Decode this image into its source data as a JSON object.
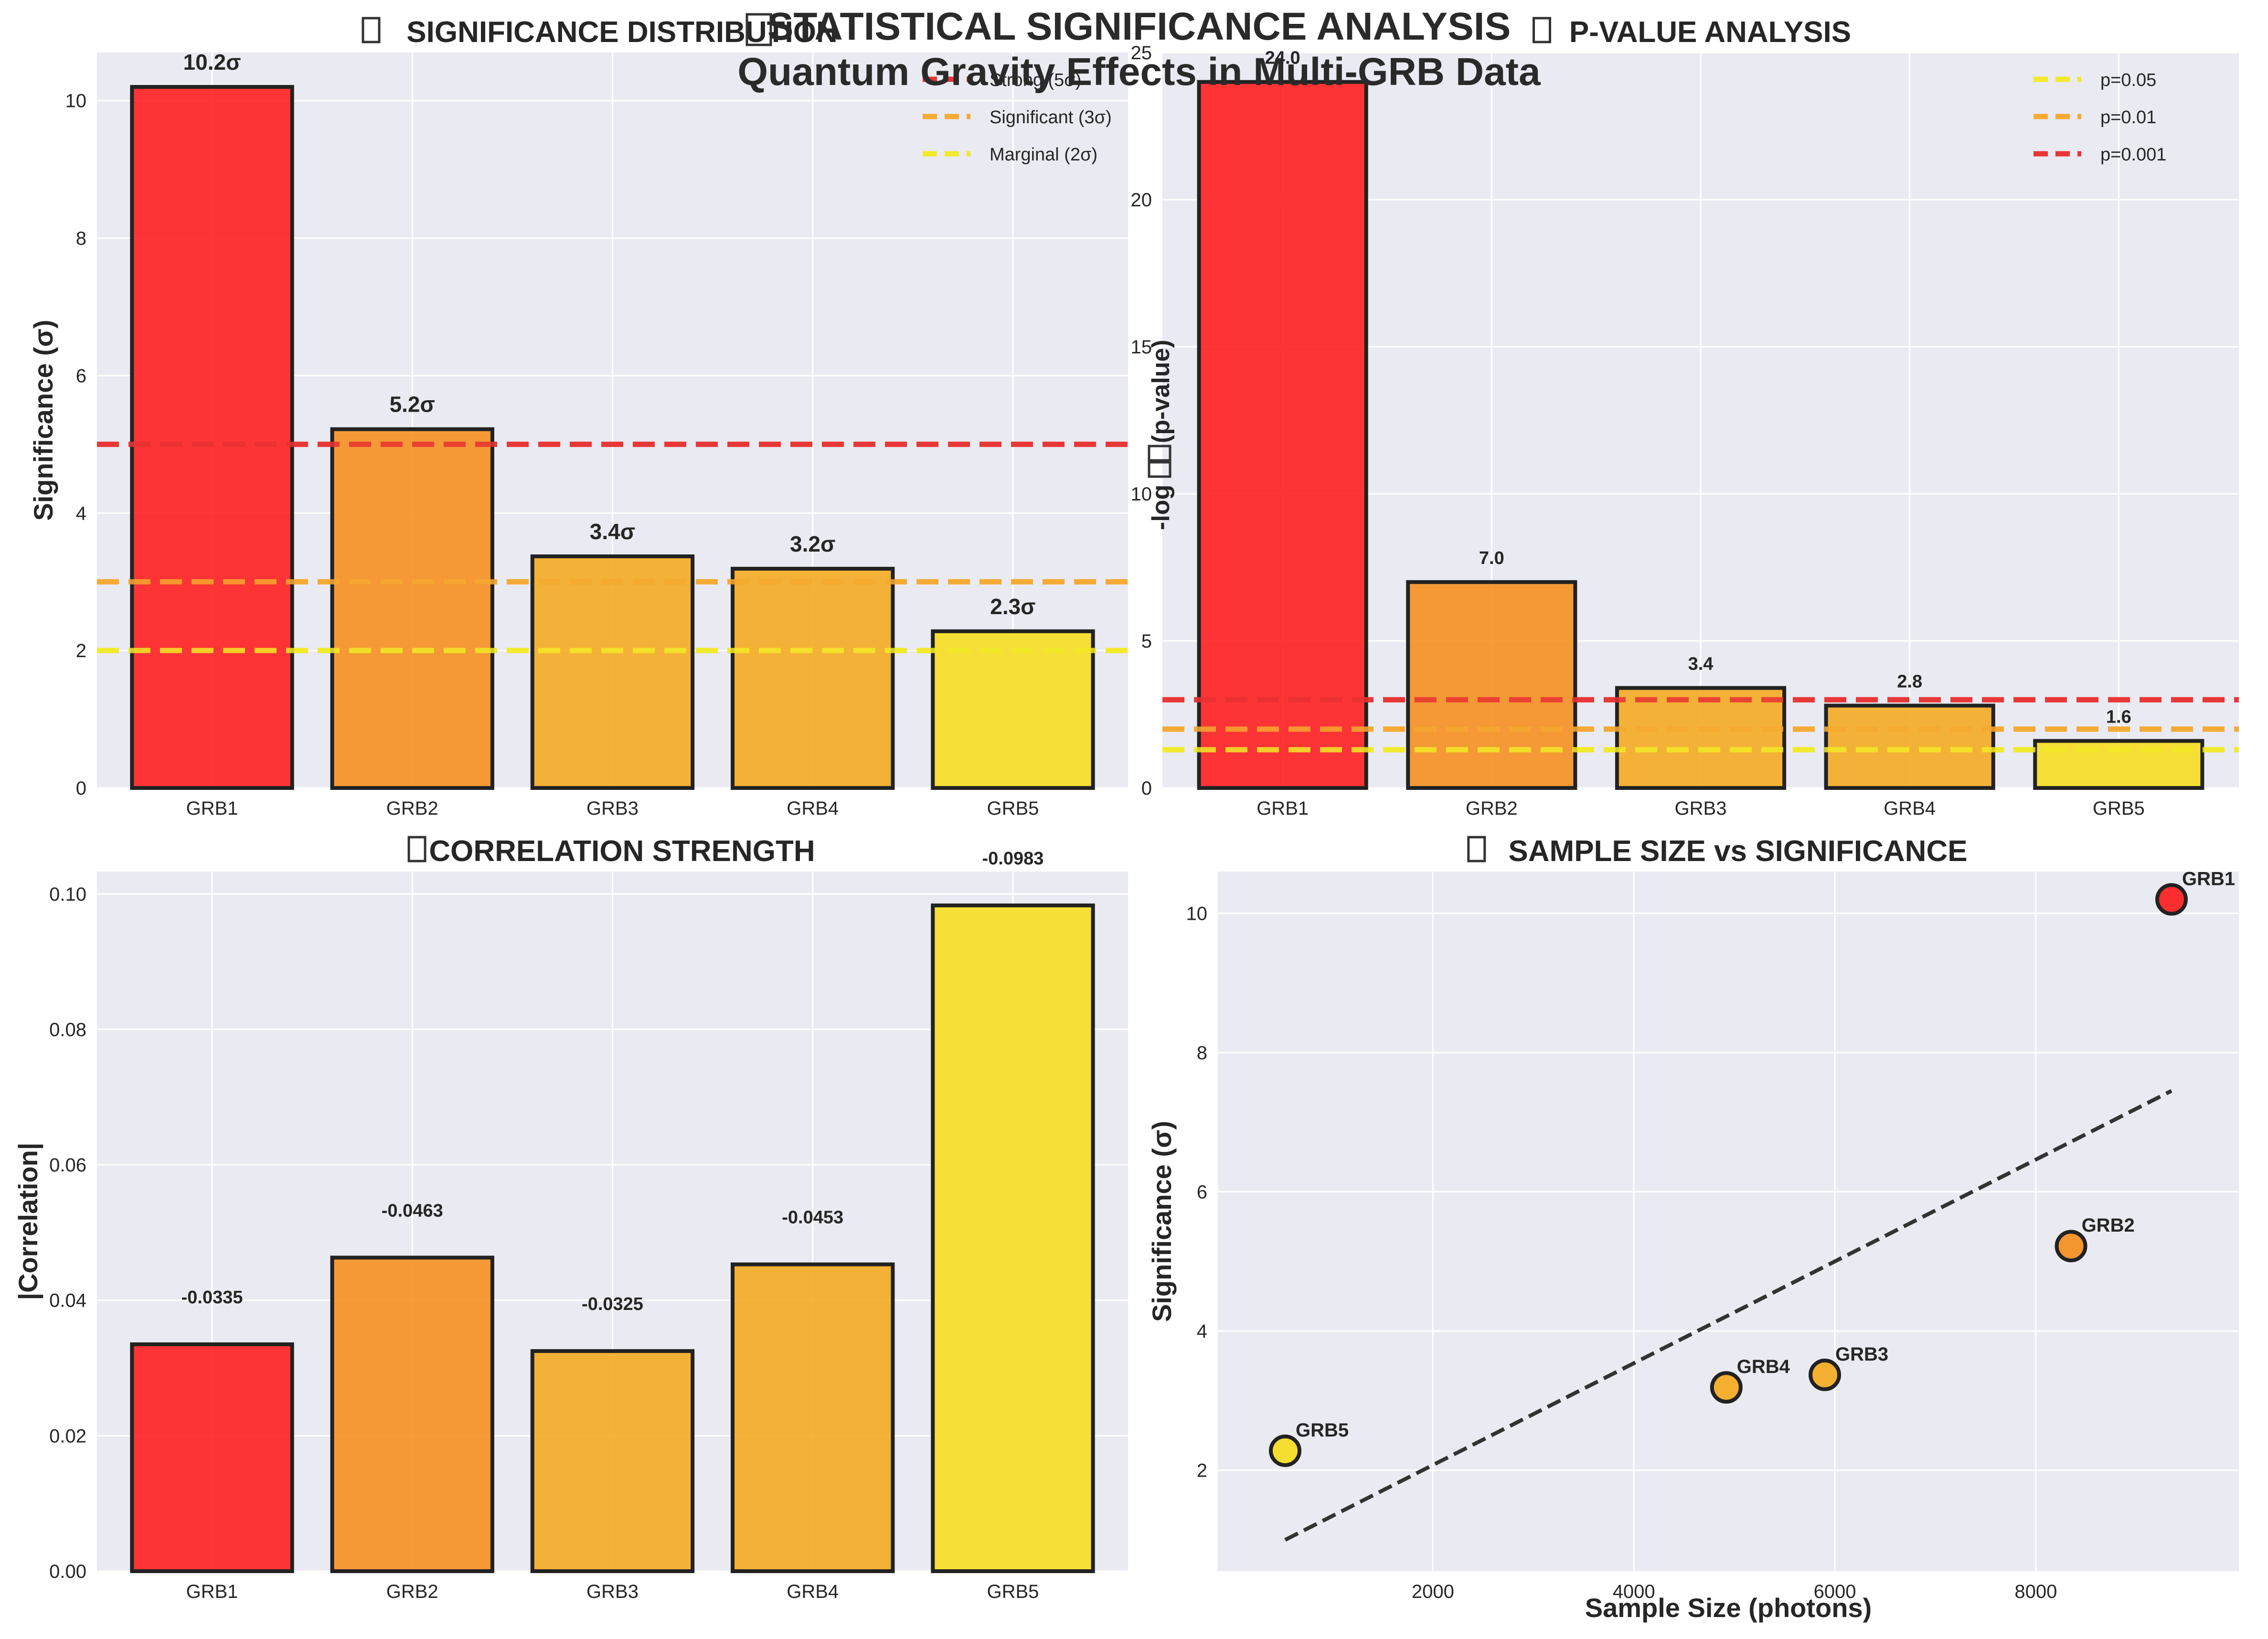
{
  "figure": {
    "title_line1": "STATISTICAL SIGNIFICANCE ANALYSIS",
    "title_line2": "Quantum Gravity Effects in Multi-GRB Data",
    "title_icon": "missing-glyph-box"
  },
  "colors": {
    "plot_bg": "#eaeaf2",
    "grid": "#ffffff",
    "bar_edge": "#222222",
    "red": "#ff1a1a",
    "orange": "#f58d1a",
    "amber": "#f5a91c",
    "yellow": "#f7dd1b",
    "line_red": "#e83535",
    "line_orange": "#f5aa33",
    "line_yellow": "#f2ea2a",
    "trend": "#333333"
  },
  "chart_data": [
    {
      "id": "significance",
      "type": "bar",
      "title": "SIGNIFICANCE DISTRIBUTION",
      "title_icon": "missing-glyph-box",
      "xlabel": "",
      "ylabel": "Significance (σ)",
      "categories": [
        "GRB1",
        "GRB2",
        "GRB3",
        "GRB4",
        "GRB5"
      ],
      "values": [
        10.2,
        5.22,
        3.37,
        3.19,
        2.28
      ],
      "data_labels": [
        "10.2σ",
        "5.2σ",
        "3.4σ",
        "3.2σ",
        "2.3σ"
      ],
      "bar_colors": [
        "red",
        "orange",
        "amber",
        "amber",
        "yellow"
      ],
      "ylim": [
        0,
        10.7
      ],
      "yticks": [
        0,
        2,
        4,
        6,
        8,
        10
      ],
      "ytick_labels": [
        "0",
        "2",
        "4",
        "6",
        "8",
        "10"
      ],
      "grid": true,
      "legend_position": "top-right",
      "hlines": [
        {
          "y": 5,
          "label": "Strong (5σ)",
          "color": "line_red"
        },
        {
          "y": 3,
          "label": "Significant (3σ)",
          "color": "line_orange"
        },
        {
          "y": 2,
          "label": "Marginal (2σ)",
          "color": "line_yellow"
        }
      ]
    },
    {
      "id": "pvalue",
      "type": "bar",
      "title": "P-VALUE ANALYSIS",
      "title_icon": "missing-glyph-box",
      "xlabel": "",
      "ylabel": "-log",
      "ylabel_suffix": "(p-value)",
      "categories": [
        "GRB1",
        "GRB2",
        "GRB3",
        "GRB4",
        "GRB5"
      ],
      "values": [
        24.0,
        7.0,
        3.4,
        2.8,
        1.6
      ],
      "data_labels": [
        "24.0",
        "7.0",
        "3.4",
        "2.8",
        "1.6"
      ],
      "bar_colors": [
        "red",
        "orange",
        "amber",
        "amber",
        "yellow"
      ],
      "ylim": [
        0,
        25
      ],
      "yticks": [
        0,
        5,
        10,
        15,
        20,
        25
      ],
      "ytick_labels": [
        "0",
        "5",
        "10",
        "15",
        "20",
        "25"
      ],
      "grid": true,
      "legend_position": "top-right",
      "hlines": [
        {
          "y": 1.301,
          "label": "p=0.05",
          "color": "line_yellow"
        },
        {
          "y": 2.0,
          "label": "p=0.01",
          "color": "line_orange"
        },
        {
          "y": 3.0,
          "label": "p=0.001",
          "color": "line_red"
        }
      ]
    },
    {
      "id": "correlation",
      "type": "bar",
      "title": "CORRELATION STRENGTH",
      "title_icon": "missing-glyph-box",
      "xlabel": "",
      "ylabel": "|Correlation|",
      "categories": [
        "GRB1",
        "GRB2",
        "GRB3",
        "GRB4",
        "GRB5"
      ],
      "values": [
        0.0335,
        0.0463,
        0.0325,
        0.0453,
        0.0983
      ],
      "data_labels": [
        "-0.0335",
        "-0.0463",
        "-0.0325",
        "-0.0453",
        "-0.0983"
      ],
      "bar_colors": [
        "red",
        "orange",
        "amber",
        "amber",
        "yellow"
      ],
      "ylim": [
        0,
        0.1033
      ],
      "yticks": [
        0,
        0.02,
        0.04,
        0.06,
        0.08,
        0.1
      ],
      "ytick_labels": [
        "0.00",
        "0.02",
        "0.04",
        "0.06",
        "0.08",
        "0.10"
      ],
      "grid": true,
      "hlines": []
    },
    {
      "id": "samplesize",
      "type": "scatter",
      "title": "SAMPLE SIZE vs SIGNIFICANCE",
      "title_icon": "missing-glyph-box",
      "xlabel": "Sample Size (photons)",
      "ylabel": "Significance (σ)",
      "points": [
        {
          "label": "GRB1",
          "x": 9350,
          "y": 10.2,
          "color": "red"
        },
        {
          "label": "GRB2",
          "x": 8350,
          "y": 5.22,
          "color": "orange"
        },
        {
          "label": "GRB3",
          "x": 5900,
          "y": 3.37,
          "color": "amber"
        },
        {
          "label": "GRB4",
          "x": 4920,
          "y": 3.19,
          "color": "amber"
        },
        {
          "label": "GRB5",
          "x": 530,
          "y": 2.28,
          "color": "yellow"
        }
      ],
      "trend": {
        "x": [
          530,
          9350
        ],
        "y": [
          1.0,
          7.45
        ]
      },
      "xlim": [
        -140,
        10020
      ],
      "ylim": [
        0.55,
        10.6
      ],
      "xticks": [
        2000,
        4000,
        6000,
        8000
      ],
      "xtick_labels": [
        "2000",
        "4000",
        "6000",
        "8000"
      ],
      "yticks": [
        2,
        4,
        6,
        8,
        10
      ],
      "ytick_labels": [
        "2",
        "4",
        "6",
        "8",
        "10"
      ],
      "grid": true
    }
  ]
}
